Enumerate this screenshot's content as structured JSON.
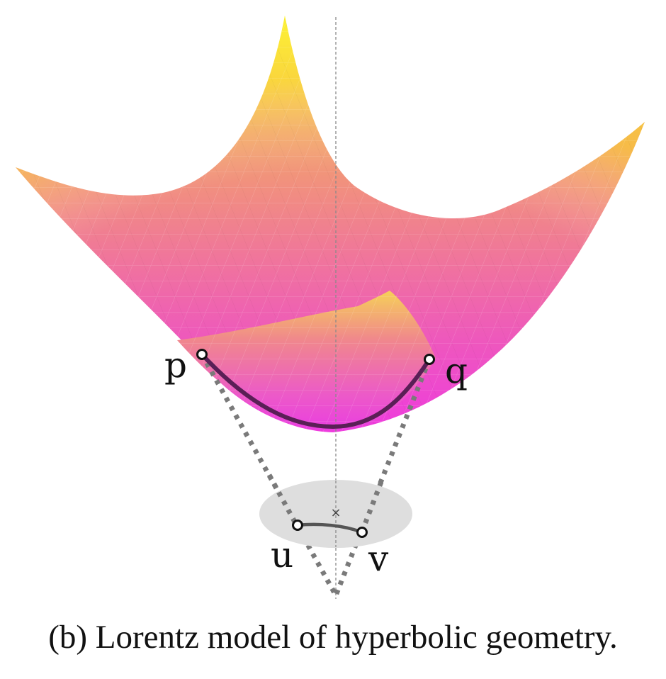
{
  "figure": {
    "caption": "(b) Lorentz model of hyperbolic geometry.",
    "points": {
      "hyperboloid": [
        {
          "id": "p",
          "label": "p"
        },
        {
          "id": "q",
          "label": "q"
        }
      ],
      "disk": [
        {
          "id": "u",
          "label": "u"
        },
        {
          "id": "v",
          "label": "v"
        }
      ]
    },
    "origin_marker": "×",
    "colors": {
      "surface_low": "#ee3bde",
      "surface_mid": "#f0808f",
      "surface_high": "#fcf250",
      "geodesic": "#5a1f56",
      "projection_lines": "#7a7a7a",
      "disk_fill": "#dedede",
      "disk_geodesic": "#555555",
      "axis": "#8a8a8a"
    }
  }
}
